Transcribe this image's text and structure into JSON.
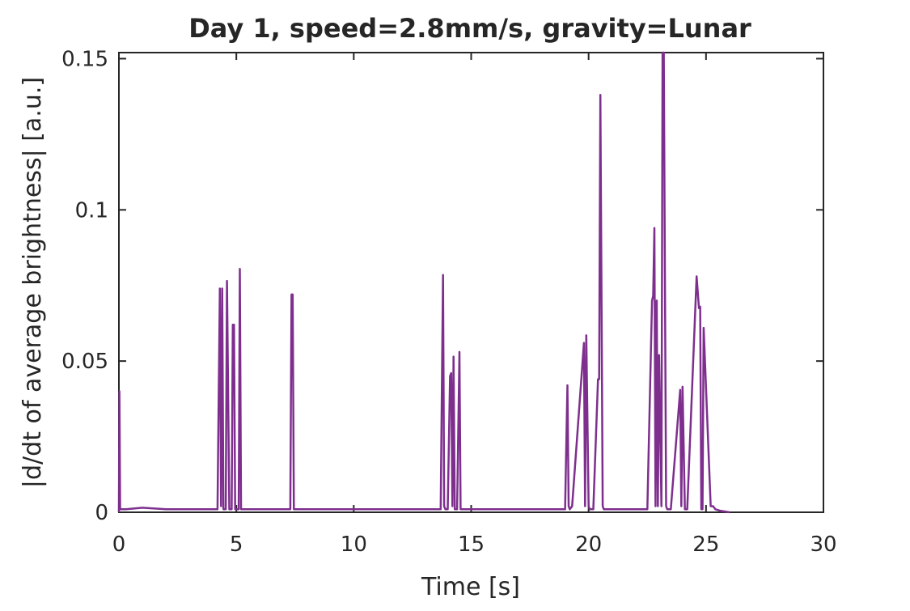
{
  "chart_data": {
    "type": "line",
    "title": "Day 1, speed=2.8mm/s, gravity=Lunar",
    "xlabel": "Time [s]",
    "ylabel": "|d/dt of average brightness| [a.u.]",
    "xlim": [
      0,
      30
    ],
    "ylim": [
      0,
      0.152
    ],
    "xticks": [
      0,
      5,
      10,
      15,
      20,
      25,
      30
    ],
    "xtick_labels": [
      "0",
      "5",
      "10",
      "15",
      "20",
      "25",
      "30"
    ],
    "yticks": [
      0,
      0.05,
      0.1,
      0.15
    ],
    "ytick_labels": [
      "0",
      "0.05",
      "0.1",
      "0.15"
    ],
    "grid": false,
    "line_color": "#7E2F8E",
    "series": [
      {
        "x": [
          0.0,
          0.02,
          0.05,
          0.3,
          1.0,
          2.0,
          3.0,
          3.9,
          4.2,
          4.3,
          4.35,
          4.4,
          4.45,
          4.5,
          4.55,
          4.6,
          4.7,
          4.8,
          4.85,
          4.9,
          4.95,
          5.0,
          5.05,
          5.1,
          5.15,
          5.2,
          5.25,
          5.3,
          5.35,
          5.4,
          5.5,
          6.0,
          7.0,
          7.3,
          7.35,
          7.4,
          7.45,
          7.5,
          8.0,
          9.0,
          10.0,
          11.0,
          12.0,
          13.0,
          13.7,
          13.8,
          13.85,
          13.9,
          14.0,
          14.1,
          14.15,
          14.2,
          14.25,
          14.3,
          14.35,
          14.4,
          14.5,
          14.55,
          14.6,
          14.65,
          15.0,
          16.0,
          17.0,
          18.0,
          19.0,
          19.1,
          19.15,
          19.2,
          19.3,
          19.8,
          19.85,
          19.9,
          20.0,
          20.05,
          20.1,
          20.2,
          20.4,
          20.45,
          20.5,
          20.6,
          20.65,
          20.7,
          20.8,
          21.0,
          22.0,
          22.5,
          22.7,
          22.75,
          22.8,
          22.85,
          22.9,
          22.95,
          23.0,
          23.1,
          23.15,
          23.2,
          23.25,
          23.3,
          23.35,
          23.4,
          23.5,
          23.9,
          23.95,
          24.0,
          24.1,
          24.15,
          24.2,
          24.6,
          24.7,
          24.75,
          24.8,
          24.85,
          24.9,
          25.2,
          25.25,
          25.3,
          25.4,
          25.6,
          26.0
        ],
        "y": [
          0.0,
          0.04,
          0.001,
          0.001,
          0.0015,
          0.001,
          0.001,
          0.001,
          0.001,
          0.074,
          0.002,
          0.074,
          0.001,
          0.001,
          0.001,
          0.0765,
          0.001,
          0.001,
          0.062,
          0.062,
          0.001,
          0.001,
          0.001,
          0.001,
          0.0805,
          0.001,
          0.001,
          0.001,
          0.001,
          0.001,
          0.001,
          0.001,
          0.001,
          0.001,
          0.072,
          0.072,
          0.001,
          0.001,
          0.001,
          0.001,
          0.001,
          0.001,
          0.001,
          0.001,
          0.001,
          0.0785,
          0.002,
          0.001,
          0.001,
          0.045,
          0.046,
          0.002,
          0.0515,
          0.001,
          0.001,
          0.001,
          0.053,
          0.001,
          0.001,
          0.001,
          0.001,
          0.001,
          0.001,
          0.001,
          0.001,
          0.042,
          0.002,
          0.001,
          0.002,
          0.056,
          0.002,
          0.0585,
          0.002,
          0.001,
          0.001,
          0.001,
          0.044,
          0.044,
          0.138,
          0.002,
          0.001,
          0.001,
          0.001,
          0.001,
          0.001,
          0.001,
          0.07,
          0.0715,
          0.094,
          0.002,
          0.07,
          0.002,
          0.052,
          0.002,
          0.152,
          0.152,
          0.079,
          0.002,
          0.001,
          0.001,
          0.001,
          0.0405,
          0.002,
          0.0415,
          0.001,
          0.001,
          0.001,
          0.078,
          0.0675,
          0.068,
          0.001,
          0.001,
          0.061,
          0.002,
          0.002,
          0.002,
          0.001,
          0.0005,
          0.0
        ]
      }
    ]
  }
}
